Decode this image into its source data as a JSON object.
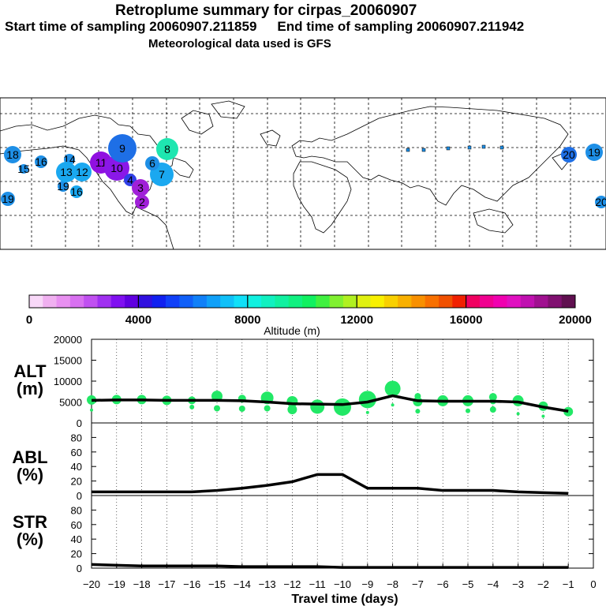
{
  "header": {
    "title": "Retroplume summary for cirpas_20060907",
    "start_time": "Start time of sampling 20060907.211859",
    "end_time": "End time of sampling 20060907.211942",
    "met_data": "Meteorological data used is GFS"
  },
  "map": {
    "markers": [
      {
        "label": "18",
        "color": "#1e8fe6"
      },
      {
        "label": "19",
        "color": "#1e8fe6"
      },
      {
        "label": "19",
        "color": "#1e8fe6"
      },
      {
        "label": "16",
        "color": "#1e8fe6"
      },
      {
        "label": "15",
        "color": "#1e8fe6"
      },
      {
        "label": "14",
        "color": "#1e8fe6"
      },
      {
        "label": "13",
        "color": "#1aa8f0"
      },
      {
        "label": "12",
        "color": "#1aa8f0"
      },
      {
        "label": "16",
        "color": "#1aa8f0"
      },
      {
        "label": "11",
        "color": "#9010e0"
      },
      {
        "label": "10",
        "color": "#8a18e8"
      },
      {
        "label": "9",
        "color": "#1e6fe6"
      },
      {
        "label": "8",
        "color": "#1ee6b0"
      },
      {
        "label": "7",
        "color": "#1aa8f0"
      },
      {
        "label": "6",
        "color": "#1e8fe6"
      },
      {
        "label": "4",
        "color": "#3040e8"
      },
      {
        "label": "3",
        "color": "#a020d8"
      },
      {
        "label": "2",
        "color": "#a020d8"
      },
      {
        "label": "20",
        "color": "#1e6fe6"
      },
      {
        "label": "19",
        "color": "#1e8fe6"
      },
      {
        "label": "20",
        "color": "#1e8fe6"
      }
    ]
  },
  "colorbar": {
    "ticks": [
      "0",
      "4000",
      "8000",
      "12000",
      "16000",
      "20000"
    ],
    "label": "Altitude (m)",
    "colors": [
      "#f8d8f8",
      "#f0b0f0",
      "#e890f0",
      "#d870f0",
      "#c050f0",
      "#a030f0",
      "#8010f0",
      "#6000e0",
      "#3010e0",
      "#1020f0",
      "#1040f8",
      "#1060f8",
      "#1080f8",
      "#10a0f8",
      "#10c0f8",
      "#10e0f8",
      "#10f0e0",
      "#10f0c0",
      "#10f0a0",
      "#10f080",
      "#10f060",
      "#40f040",
      "#80f030",
      "#b0f020",
      "#e0f010",
      "#f8f000",
      "#f8d000",
      "#f8b000",
      "#f89000",
      "#f87000",
      "#f05000",
      "#f02000",
      "#f00060",
      "#f00090",
      "#f000b0",
      "#e010c0",
      "#c010b0",
      "#a01090",
      "#801070",
      "#601050"
    ]
  },
  "chart_data": [
    {
      "type": "line",
      "name": "ALT",
      "ylabel": "ALT\n(m)",
      "ylabel_lines": [
        "ALT",
        "(m)"
      ],
      "ylim": [
        0,
        20000
      ],
      "yticks": [
        "20000",
        "15000",
        "10000",
        "5000",
        "0"
      ],
      "x": [
        -20,
        -19,
        -18,
        -17,
        -16,
        -15,
        -14,
        -13,
        -12,
        -11,
        -10,
        -9,
        -8,
        -7,
        -6,
        -5,
        -4,
        -3,
        -2,
        -1
      ],
      "values": [
        5400,
        5500,
        5500,
        5400,
        5400,
        5400,
        5300,
        5000,
        4600,
        4500,
        4400,
        5000,
        6500,
        5300,
        5200,
        5200,
        5200,
        5000,
        3800,
        2800
      ],
      "scatter": [
        {
          "x": -20,
          "y": 5500,
          "s": 6
        },
        {
          "x": -19,
          "y": 5600,
          "s": 6
        },
        {
          "x": -18,
          "y": 5600,
          "s": 6
        },
        {
          "x": -17,
          "y": 5400,
          "s": 6
        },
        {
          "x": -16,
          "y": 5400,
          "s": 5
        },
        {
          "x": -16,
          "y": 3800,
          "s": 3
        },
        {
          "x": -15,
          "y": 6400,
          "s": 7
        },
        {
          "x": -15,
          "y": 3500,
          "s": 4
        },
        {
          "x": -14,
          "y": 5800,
          "s": 5
        },
        {
          "x": -14,
          "y": 3400,
          "s": 4
        },
        {
          "x": -13,
          "y": 6000,
          "s": 8
        },
        {
          "x": -13,
          "y": 3500,
          "s": 4
        },
        {
          "x": -12,
          "y": 5100,
          "s": 7
        },
        {
          "x": -12,
          "y": 3200,
          "s": 6
        },
        {
          "x": -11,
          "y": 3900,
          "s": 9
        },
        {
          "x": -10,
          "y": 3800,
          "s": 11
        },
        {
          "x": -10,
          "y": 3300,
          "s": 4
        },
        {
          "x": -9,
          "y": 5600,
          "s": 11
        },
        {
          "x": -9,
          "y": 2500,
          "s": 2
        },
        {
          "x": -8,
          "y": 8200,
          "s": 10
        },
        {
          "x": -8,
          "y": 4300,
          "s": 2
        },
        {
          "x": -7,
          "y": 6400,
          "s": 4
        },
        {
          "x": -7,
          "y": 5100,
          "s": 6
        },
        {
          "x": -7,
          "y": 2800,
          "s": 3
        },
        {
          "x": -6,
          "y": 5300,
          "s": 7
        },
        {
          "x": -5,
          "y": 5300,
          "s": 7
        },
        {
          "x": -5,
          "y": 2900,
          "s": 3
        },
        {
          "x": -4,
          "y": 6200,
          "s": 5
        },
        {
          "x": -4,
          "y": 5200,
          "s": 4
        },
        {
          "x": -4,
          "y": 3200,
          "s": 4
        },
        {
          "x": -3,
          "y": 5300,
          "s": 7
        },
        {
          "x": -3,
          "y": 2200,
          "s": 2
        },
        {
          "x": -2,
          "y": 4000,
          "s": 6
        },
        {
          "x": -2,
          "y": 1600,
          "s": 2
        },
        {
          "x": -1,
          "y": 2700,
          "s": 6
        },
        {
          "x": -20,
          "y": 3100,
          "s": 2
        }
      ]
    },
    {
      "type": "line",
      "name": "ABL",
      "ylabel_lines": [
        "ABL",
        "(%)"
      ],
      "ylim": [
        0,
        100
      ],
      "yticks": [
        "80",
        "60",
        "40",
        "20",
        "0"
      ],
      "x": [
        -20,
        -19,
        -18,
        -17,
        -16,
        -15,
        -14,
        -13,
        -12,
        -11,
        -10,
        -9,
        -8,
        -7,
        -6,
        -5,
        -4,
        -3,
        -2,
        -1
      ],
      "values": [
        5,
        5,
        5,
        5,
        5,
        7,
        10,
        14,
        19,
        29,
        29,
        10,
        10,
        10,
        7,
        7,
        7,
        5,
        4,
        3
      ]
    },
    {
      "type": "line",
      "name": "STR",
      "ylabel_lines": [
        "STR",
        "(%)"
      ],
      "ylim": [
        0,
        100
      ],
      "yticks": [
        "80",
        "60",
        "40",
        "20",
        "0"
      ],
      "x": [
        -20,
        -19,
        -18,
        -17,
        -16,
        -15,
        -14,
        -13,
        -12,
        -11,
        -10,
        -9,
        -8,
        -7,
        -6,
        -5,
        -4,
        -3,
        -2,
        -1
      ],
      "values": [
        5,
        4,
        3,
        3,
        3,
        3,
        2,
        2,
        2,
        2,
        1,
        1,
        1,
        1,
        1,
        1,
        1,
        1,
        1,
        1
      ],
      "xlabel": "Travel time (days)",
      "xticks": [
        "−20",
        "−19",
        "−18",
        "−17",
        "−16",
        "−15",
        "−14",
        "−13",
        "−12",
        "−11",
        "−10",
        "−9",
        "−8",
        "−7",
        "−6",
        "−5",
        "−4",
        "−3",
        "−2",
        "−1",
        "0"
      ]
    }
  ]
}
